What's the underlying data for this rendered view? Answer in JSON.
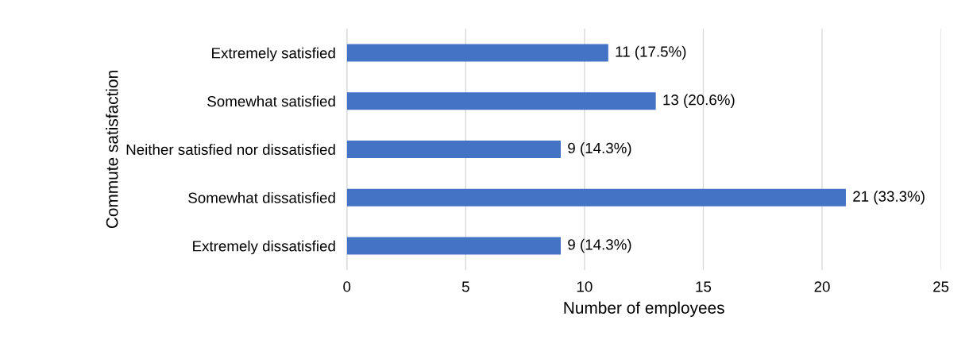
{
  "chart_data": {
    "type": "bar",
    "orientation": "horizontal",
    "xlabel": "Number of employees",
    "ylabel": "Commute satisfaction",
    "categories": [
      "Extremely satisfied",
      "Somewhat satisfied",
      "Neither satisfied nor dissatisfied",
      "Somewhat dissatisfied",
      "Extremely dissatisfied"
    ],
    "values": [
      11,
      13,
      9,
      21,
      9
    ],
    "color": "#4472c4",
    "value_labels": [
      "11 (17.5%)",
      "13 (20.6%)",
      "9 (14.3%)",
      "21 (33.3%)",
      "9 (14.3%)"
    ],
    "xlim": [
      0,
      25
    ],
    "xticks": [
      0,
      5,
      10,
      15,
      20,
      25
    ],
    "grid": "x",
    "legend": false
  }
}
